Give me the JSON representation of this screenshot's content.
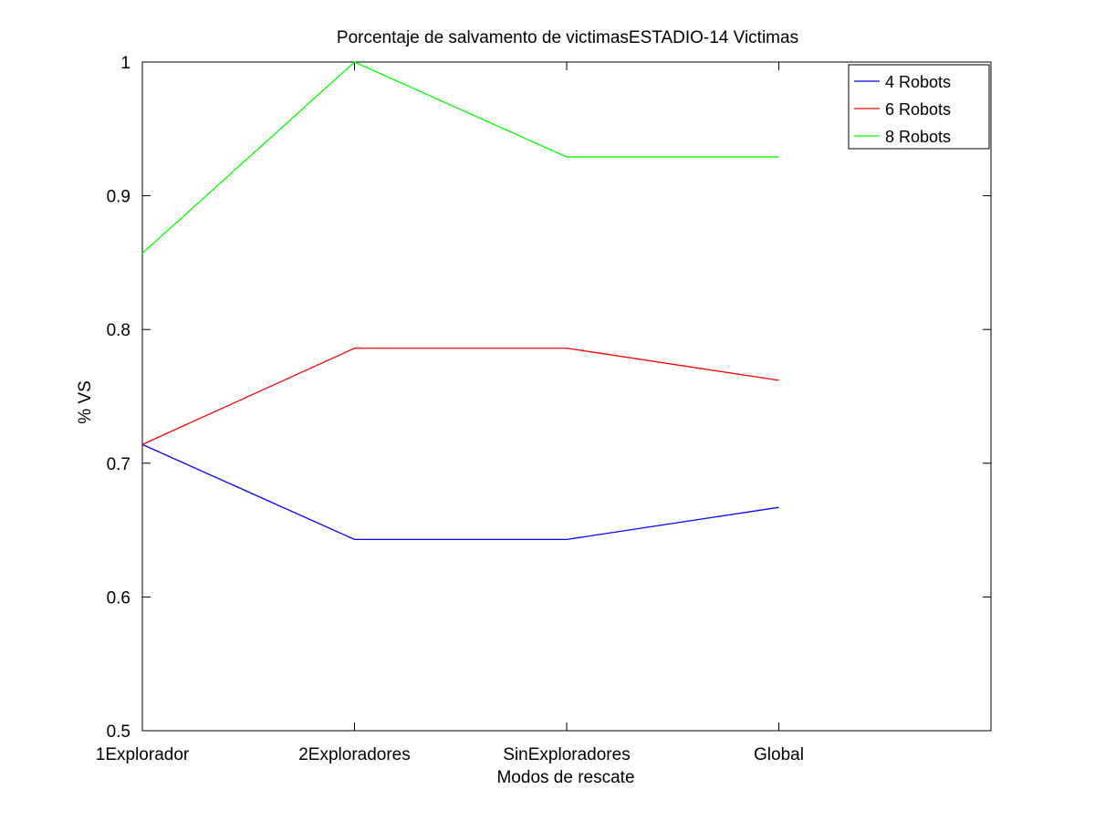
{
  "chart_data": {
    "type": "line",
    "title": "Porcentaje de salvamento de victimasESTADIO-14 Victimas",
    "xlabel": "Modos de rescate",
    "ylabel": "% VS",
    "categories": [
      "1Explorador",
      "2Exploradores",
      "SinExploradores",
      "Global"
    ],
    "ylim": [
      0.5,
      1.0
    ],
    "yticks": [
      "0.5",
      "0.6",
      "0.7",
      "0.8",
      "0.9",
      "1"
    ],
    "grid": false,
    "legend_position": "top-right",
    "series": [
      {
        "name": "4 Robots",
        "color": "#0000ff",
        "values": [
          0.714,
          0.643,
          0.643,
          0.667
        ]
      },
      {
        "name": "6 Robots",
        "color": "#ff0000",
        "values": [
          0.714,
          0.786,
          0.786,
          0.762
        ]
      },
      {
        "name": "8 Robots",
        "color": "#00ff00",
        "values": [
          0.857,
          1.0,
          0.929,
          0.929
        ]
      }
    ]
  }
}
